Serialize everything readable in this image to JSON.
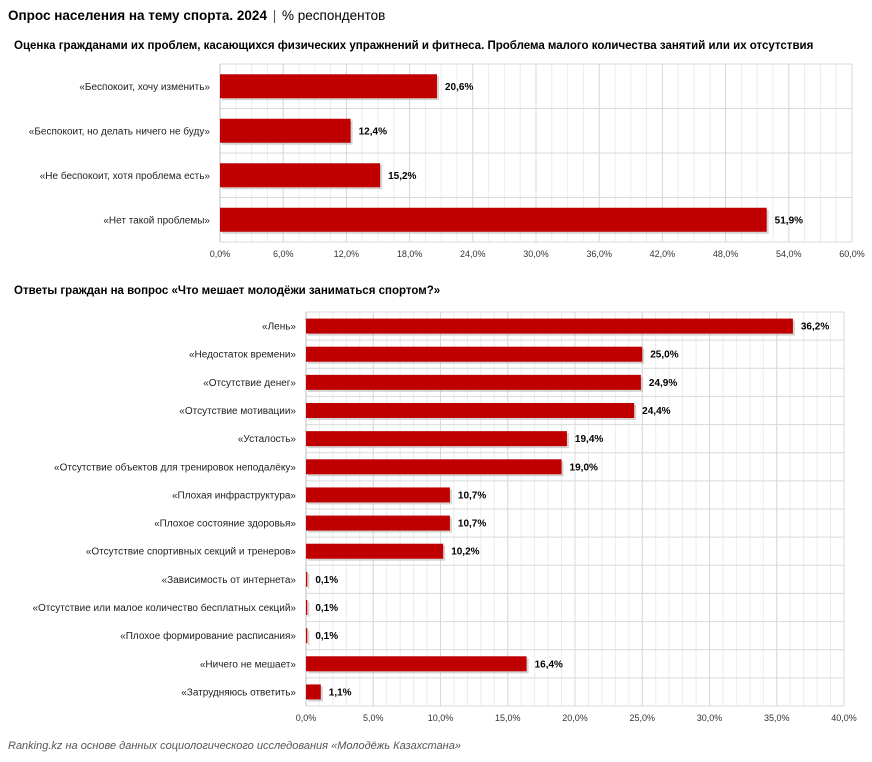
{
  "header": {
    "title": "Опрос населения на тему спорта. 2024",
    "separator": "|",
    "unit": "% респондентов"
  },
  "footer": {
    "source": "Ranking.kz на основе данных социологического исследования «Молодёжь Казахстана»"
  },
  "colors": {
    "bar": "#c00000",
    "grid": "#d9d9d9"
  },
  "chart_data": [
    {
      "type": "bar",
      "orientation": "horizontal",
      "title": "Оценка гражданами их проблем, касающихся физических упражнений и фитнеса. Проблема малого количества занятий или их отсутствия",
      "categories": [
        "«Беспокоит, хочу изменить»",
        "«Беспокоит, но делать ничего не буду»",
        "«Не беспокоит, хотя проблема есть»",
        "«Нет такой проблемы»"
      ],
      "values": [
        20.6,
        12.4,
        15.2,
        51.9
      ],
      "data_labels": [
        "20,6%",
        "12,4%",
        "15,2%",
        "51,9%"
      ],
      "xlim": [
        0,
        60
      ],
      "ticks": [
        "0,0%",
        "6,0%",
        "12,0%",
        "18,0%",
        "24,0%",
        "30,0%",
        "36,0%",
        "42,0%",
        "48,0%",
        "54,0%",
        "60,0%"
      ],
      "grid": true
    },
    {
      "type": "bar",
      "orientation": "horizontal",
      "title": "Ответы граждан на вопрос «Что мешает молодёжи заниматься спортом?»",
      "categories": [
        "«Лень»",
        "«Недостаток времени»",
        "«Отсутствие денег»",
        "«Отсутствие мотивации»",
        "«Усталость»",
        "«Отсутствие объектов для тренировок неподалёку»",
        "«Плохая инфраструктура»",
        "«Плохое состояние здоровья»",
        "«Отсутствие спортивных секций и тренеров»",
        "«Зависимость от интернета»",
        "«Отсутствие или малое количество бесплатных секций»",
        "«Плохое формирование расписания»",
        "«Ничего не мешает»",
        "«Затрудняюсь ответить»"
      ],
      "values": [
        36.2,
        25.0,
        24.9,
        24.4,
        19.4,
        19.0,
        10.7,
        10.7,
        10.2,
        0.1,
        0.1,
        0.1,
        16.4,
        1.1
      ],
      "data_labels": [
        "36,2%",
        "25,0%",
        "24,9%",
        "24,4%",
        "19,4%",
        "19,0%",
        "10,7%",
        "10,7%",
        "10,2%",
        "0,1%",
        "0,1%",
        "0,1%",
        "16,4%",
        "1,1%"
      ],
      "xlim": [
        0,
        40
      ],
      "ticks": [
        "0,0%",
        "5,0%",
        "10,0%",
        "15,0%",
        "20,0%",
        "25,0%",
        "30,0%",
        "35,0%",
        "40,0%"
      ],
      "grid": true
    }
  ]
}
